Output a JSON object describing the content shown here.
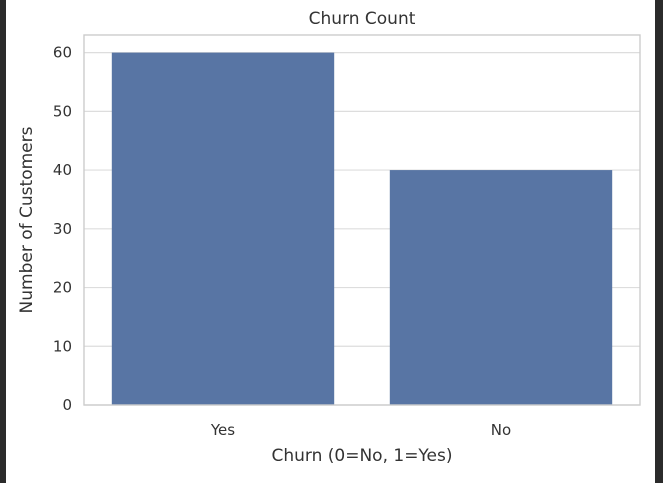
{
  "chart_data": {
    "type": "bar",
    "title": "Churn Count",
    "xlabel": "Churn (0=No, 1=Yes)",
    "ylabel": "Number of Customers",
    "categories": [
      "Yes",
      "No"
    ],
    "values": [
      60,
      40
    ],
    "ylim": [
      0,
      63
    ],
    "yticks": [
      0,
      10,
      20,
      30,
      40,
      50,
      60
    ],
    "grid": true,
    "bar_color": "#5875a4"
  }
}
